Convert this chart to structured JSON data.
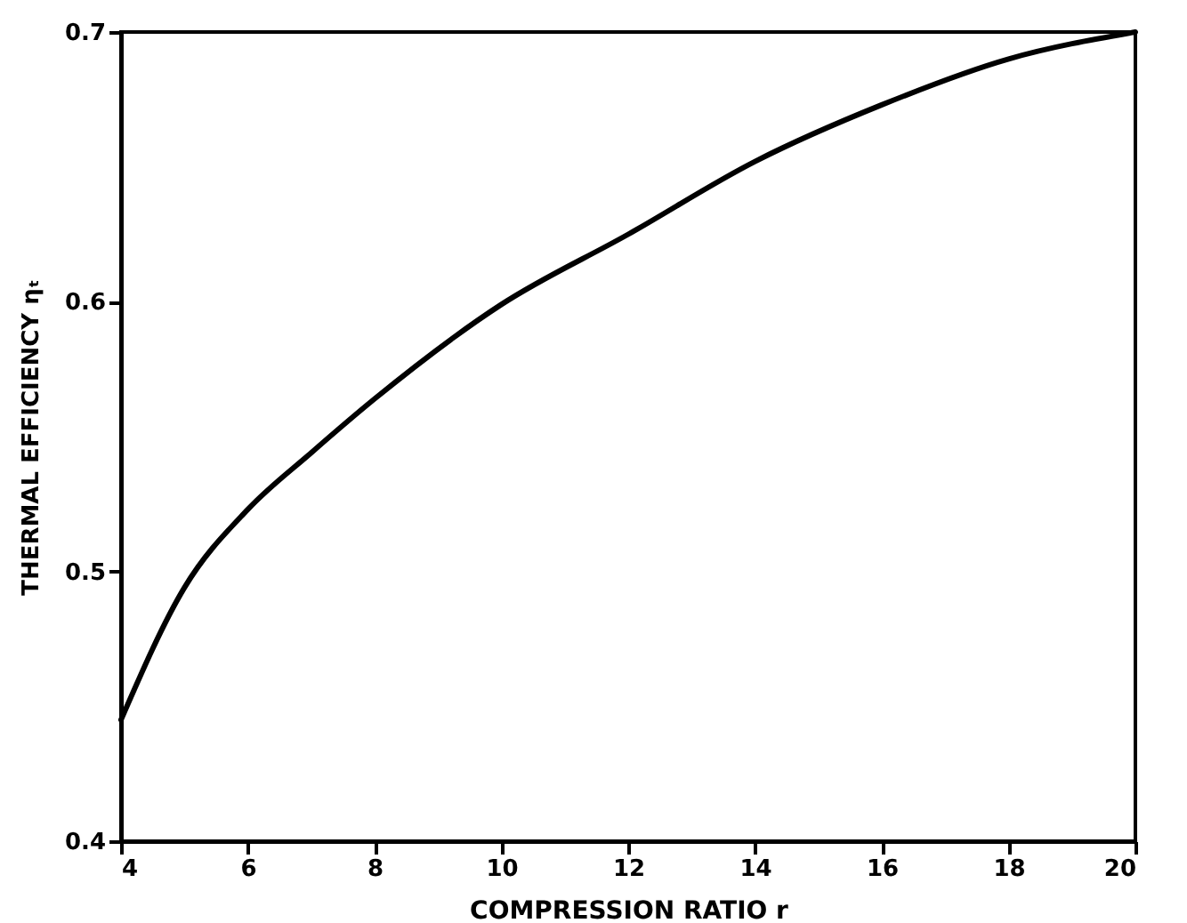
{
  "chart_data": {
    "type": "line",
    "xlabel": "COMPRESSION RATIO r",
    "ylabel": "THERMAL EFFICIENCY ηₜ",
    "x": [
      4,
      5,
      6,
      7,
      8,
      10,
      12,
      14,
      16,
      18,
      20
    ],
    "series": [
      {
        "color": "#000000",
        "values": [
          0.445,
          0.494,
          0.523,
          0.544,
          0.564,
          0.599,
          0.625,
          0.652,
          0.673,
          0.69,
          0.7
        ]
      }
    ],
    "xlim": [
      4,
      20
    ],
    "xticks": [
      4,
      6,
      8,
      10,
      12,
      14,
      16,
      18,
      20
    ],
    "ylim": [
      0.4,
      0.7
    ],
    "yticks": [
      0.4,
      0.5,
      0.6,
      0.7
    ],
    "grid": false,
    "marker": "none",
    "line_style": "solid"
  }
}
